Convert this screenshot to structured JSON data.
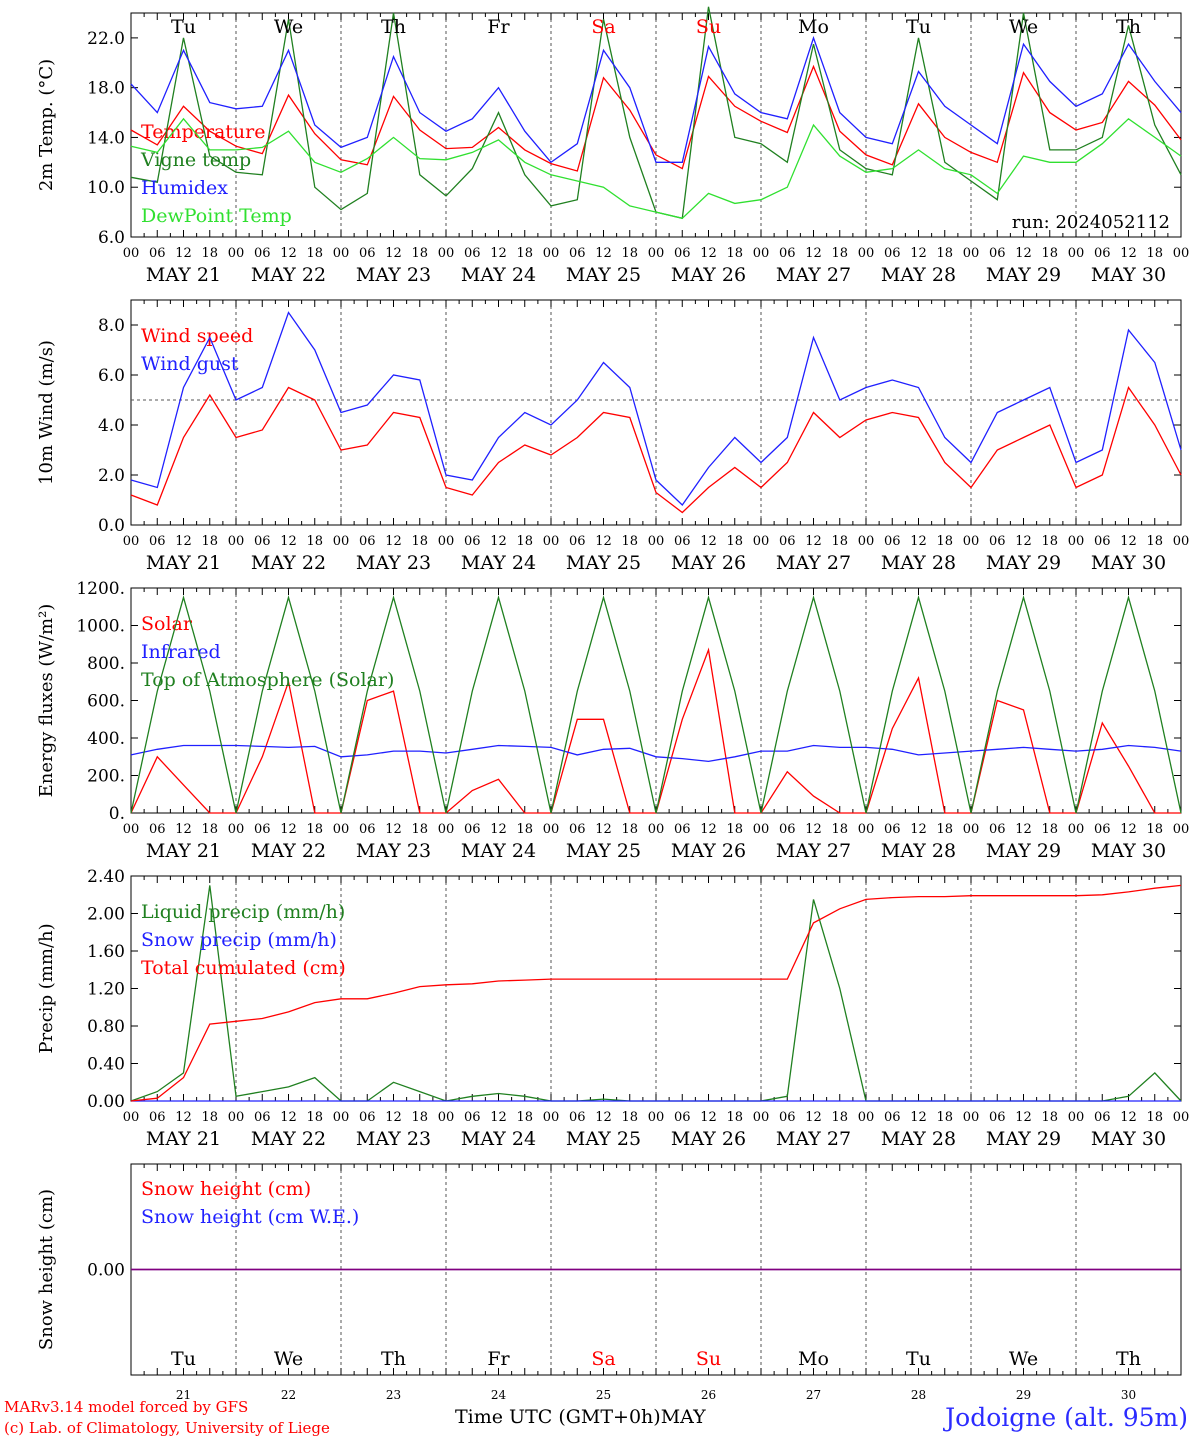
{
  "run_label": "run: 2024052112",
  "x_axis_title": "Time UTC (GMT+0h)MAY",
  "station": "Jodoigne (alt. 95m)",
  "credits": [
    "MARv3.14 model forced by GFS",
    "(c) Lab. of Climatology, University of Liege"
  ],
  "days": [
    {
      "date": "MAY 21",
      "weekday": "Tu",
      "num": "21",
      "weekend": false
    },
    {
      "date": "MAY 22",
      "weekday": "We",
      "num": "22",
      "weekend": false
    },
    {
      "date": "MAY 23",
      "weekday": "Th",
      "num": "23",
      "weekend": false
    },
    {
      "date": "MAY 24",
      "weekday": "Fr",
      "num": "24",
      "weekend": false
    },
    {
      "date": "MAY 25",
      "weekday": "Sa",
      "num": "25",
      "weekend": true
    },
    {
      "date": "MAY 26",
      "weekday": "Su",
      "num": "26",
      "weekend": true
    },
    {
      "date": "MAY 27",
      "weekday": "Mo",
      "num": "27",
      "weekend": false
    },
    {
      "date": "MAY 28",
      "weekday": "Tu",
      "num": "28",
      "weekend": false
    },
    {
      "date": "MAY 29",
      "weekday": "We",
      "num": "29",
      "weekend": false
    },
    {
      "date": "MAY 30",
      "weekday": "Th",
      "num": "30",
      "weekend": false
    }
  ],
  "hour_ticks": [
    "00",
    "06",
    "12",
    "18"
  ],
  "colors": {
    "red": "#ff0000",
    "green": "#208020",
    "blue": "#2020ff",
    "lightgreen": "#30e030",
    "purple": "#800080",
    "grid": "#555555"
  },
  "chart_data": [
    {
      "type": "line",
      "ylabel": "2m Temp. (°C)",
      "ylim": [
        6,
        24
      ],
      "yticks": [
        "6.0",
        "10.0",
        "14.0",
        "18.0",
        "22.0"
      ],
      "ytick_values": [
        6,
        10,
        14,
        18,
        22
      ],
      "x_hours_step": 6,
      "series": [
        {
          "name": "Temperature",
          "color": "#ff0000",
          "values": [
            14.6,
            13.4,
            16.5,
            14.5,
            13.3,
            12.7,
            17.4,
            14.3,
            12.2,
            11.8,
            17.3,
            14.6,
            13.1,
            13.2,
            14.8,
            13.0,
            11.9,
            11.3,
            18.8,
            16.2,
            12.6,
            11.5,
            18.9,
            16.5,
            15.3,
            14.4,
            19.7,
            14.5,
            12.6,
            11.8,
            16.7,
            14.0,
            12.8,
            12.0,
            19.2,
            16.0,
            14.6,
            15.2,
            18.5,
            16.6,
            13.8
          ]
        },
        {
          "name": "Vigne temp",
          "color": "#208020",
          "values": [
            10.8,
            10.4,
            22.0,
            12.5,
            11.2,
            11.0,
            23.5,
            10.0,
            8.2,
            9.5,
            24.0,
            11.0,
            9.3,
            11.5,
            16.0,
            11.0,
            8.5,
            9.0,
            23.5,
            14.0,
            8.0,
            7.5,
            24.5,
            14.0,
            13.5,
            12.0,
            21.5,
            13.0,
            11.5,
            11.0,
            22.0,
            12.0,
            10.5,
            9.0,
            24.0,
            13.0,
            13.0,
            14.0,
            23.0,
            15.0,
            11.0
          ]
        },
        {
          "name": "Humidex",
          "color": "#2020ff",
          "values": [
            18.3,
            16.0,
            21.0,
            16.8,
            16.3,
            16.5,
            21.0,
            15.0,
            13.2,
            14.0,
            20.5,
            16.0,
            14.5,
            15.5,
            18.0,
            14.5,
            12.0,
            13.5,
            21.0,
            18.0,
            12.0,
            12.0,
            21.3,
            17.5,
            16.0,
            15.5,
            22.0,
            16.0,
            14.0,
            13.5,
            19.3,
            16.5,
            15.0,
            13.5,
            21.5,
            18.5,
            16.5,
            17.5,
            21.5,
            18.5,
            16.0
          ]
        },
        {
          "name": "DewPoint Temp",
          "color": "#30e030",
          "values": [
            13.3,
            12.8,
            15.5,
            13.0,
            13.0,
            13.2,
            14.5,
            12.0,
            11.2,
            12.3,
            14.0,
            12.3,
            12.2,
            12.8,
            13.8,
            12.0,
            11.0,
            10.5,
            10.0,
            8.5,
            8.0,
            7.5,
            9.5,
            8.7,
            9.0,
            10.0,
            15.0,
            12.5,
            11.2,
            11.5,
            13.0,
            11.5,
            11.0,
            9.5,
            12.5,
            12.0,
            12.0,
            13.5,
            15.5,
            14.0,
            12.5
          ]
        }
      ]
    },
    {
      "type": "line",
      "ylabel": "10m Wind (m/s)",
      "ylim": [
        0,
        9
      ],
      "yticks": [
        "0.0",
        "2.0",
        "4.0",
        "6.0",
        "8.0"
      ],
      "ytick_values": [
        0,
        2,
        4,
        6,
        8
      ],
      "reference_line": 5,
      "x_hours_step": 6,
      "series": [
        {
          "name": "Wind speed",
          "color": "#ff0000",
          "values": [
            1.2,
            0.8,
            3.5,
            5.2,
            3.5,
            3.8,
            5.5,
            5.0,
            3.0,
            3.2,
            4.5,
            4.3,
            1.5,
            1.2,
            2.5,
            3.2,
            2.8,
            3.5,
            4.5,
            4.3,
            1.3,
            0.5,
            1.5,
            2.3,
            1.5,
            2.5,
            4.5,
            3.5,
            4.2,
            4.5,
            4.3,
            2.5,
            1.5,
            3.0,
            3.5,
            4.0,
            1.5,
            2.0,
            5.5,
            4.0,
            2.0
          ]
        },
        {
          "name": "Wind gust",
          "color": "#2020ff",
          "values": [
            1.8,
            1.5,
            5.5,
            7.5,
            5.0,
            5.5,
            8.5,
            7.0,
            4.5,
            4.8,
            6.0,
            5.8,
            2.0,
            1.8,
            3.5,
            4.5,
            4.0,
            5.0,
            6.5,
            5.5,
            1.8,
            0.8,
            2.3,
            3.5,
            2.5,
            3.5,
            7.5,
            5.0,
            5.5,
            5.8,
            5.5,
            3.5,
            2.5,
            4.5,
            5.0,
            5.5,
            2.5,
            3.0,
            7.8,
            6.5,
            3.0
          ]
        }
      ]
    },
    {
      "type": "line",
      "ylabel": "Energy fluxes (W/m²)",
      "ylim": [
        0,
        1200
      ],
      "yticks": [
        "0.",
        "200.",
        "400.",
        "600.",
        "800.",
        "1000.",
        "1200."
      ],
      "ytick_values": [
        0,
        200,
        400,
        600,
        800,
        1000,
        1200
      ],
      "x_hours_step": 6,
      "series": [
        {
          "name": "Solar",
          "color": "#ff0000",
          "values": [
            0,
            300,
            150,
            0,
            0,
            300,
            700,
            0,
            0,
            600,
            650,
            0,
            0,
            120,
            180,
            0,
            0,
            500,
            500,
            0,
            0,
            500,
            870,
            0,
            0,
            220,
            90,
            0,
            0,
            450,
            720,
            0,
            0,
            600,
            550,
            0,
            0,
            480,
            250,
            0,
            0
          ]
        },
        {
          "name": "Infrared",
          "color": "#2020ff",
          "values": [
            310,
            340,
            360,
            360,
            360,
            355,
            350,
            355,
            300,
            310,
            330,
            330,
            320,
            340,
            360,
            355,
            350,
            310,
            340,
            345,
            300,
            290,
            275,
            300,
            330,
            330,
            360,
            350,
            350,
            340,
            310,
            320,
            330,
            340,
            350,
            340,
            330,
            340,
            360,
            350,
            330
          ]
        },
        {
          "name": "Top of Atmosphere (Solar)",
          "color": "#208020",
          "values": [
            0,
            650,
            1150,
            650,
            0,
            650,
            1150,
            650,
            0,
            650,
            1150,
            650,
            0,
            650,
            1150,
            650,
            0,
            650,
            1150,
            650,
            0,
            650,
            1150,
            650,
            0,
            650,
            1150,
            650,
            0,
            650,
            1150,
            650,
            0,
            650,
            1150,
            650,
            0,
            650,
            1150,
            650,
            0
          ]
        }
      ]
    },
    {
      "type": "line",
      "ylabel": "Precip (mm/h)",
      "ylim": [
        0,
        2.4
      ],
      "yticks": [
        "0.00",
        "0.40",
        "0.80",
        "1.20",
        "1.60",
        "2.00",
        "2.40"
      ],
      "ytick_values": [
        0,
        0.4,
        0.8,
        1.2,
        1.6,
        2.0,
        2.4
      ],
      "x_hours_step": 6,
      "series": [
        {
          "name": "Liquid precip (mm/h)",
          "color": "#208020",
          "values": [
            0,
            0.1,
            0.3,
            2.3,
            0.05,
            0.1,
            0.15,
            0.25,
            0.0,
            0.0,
            0.2,
            0.1,
            0.0,
            0.05,
            0.08,
            0.05,
            0.0,
            0.0,
            0.02,
            0.0,
            0.0,
            0.0,
            0.0,
            0.0,
            0.0,
            0.05,
            2.15,
            1.2,
            0.0,
            0.0,
            0.0,
            0.0,
            0.0,
            0.0,
            0.0,
            0.0,
            0.0,
            0.0,
            0.05,
            0.3,
            0.0
          ]
        },
        {
          "name": "Snow precip (mm/h)",
          "color": "#2020ff",
          "values": [
            0,
            0,
            0,
            0,
            0,
            0,
            0,
            0,
            0,
            0,
            0,
            0,
            0,
            0,
            0,
            0,
            0,
            0,
            0,
            0,
            0,
            0,
            0,
            0,
            0,
            0,
            0,
            0,
            0,
            0,
            0,
            0,
            0,
            0,
            0,
            0,
            0,
            0,
            0,
            0,
            0
          ]
        },
        {
          "name": "Total cumulated (cm)",
          "color": "#ff0000",
          "values": [
            0.0,
            0.03,
            0.25,
            0.82,
            0.85,
            0.88,
            0.95,
            1.05,
            1.09,
            1.09,
            1.15,
            1.22,
            1.24,
            1.25,
            1.28,
            1.29,
            1.3,
            1.3,
            1.3,
            1.3,
            1.3,
            1.3,
            1.3,
            1.3,
            1.3,
            1.3,
            1.9,
            2.05,
            2.15,
            2.17,
            2.18,
            2.18,
            2.19,
            2.19,
            2.19,
            2.19,
            2.19,
            2.2,
            2.23,
            2.27,
            2.3
          ]
        }
      ]
    },
    {
      "type": "line",
      "ylabel": "Snow height (cm)",
      "ylim": [
        -0.5,
        0.5
      ],
      "yticks": [
        "0.00"
      ],
      "ytick_values": [
        0
      ],
      "x_hours_step": 6,
      "series": [
        {
          "name": "Snow height (cm)",
          "color": "#ff0000",
          "values": [
            0,
            0,
            0,
            0,
            0,
            0,
            0,
            0,
            0,
            0,
            0,
            0,
            0,
            0,
            0,
            0,
            0,
            0,
            0,
            0,
            0,
            0,
            0,
            0,
            0,
            0,
            0,
            0,
            0,
            0,
            0,
            0,
            0,
            0,
            0,
            0,
            0,
            0,
            0,
            0,
            0
          ]
        },
        {
          "name": "Snow height (cm W.E.)",
          "color": "#2020ff",
          "values": [
            0,
            0,
            0,
            0,
            0,
            0,
            0,
            0,
            0,
            0,
            0,
            0,
            0,
            0,
            0,
            0,
            0,
            0,
            0,
            0,
            0,
            0,
            0,
            0,
            0,
            0,
            0,
            0,
            0,
            0,
            0,
            0,
            0,
            0,
            0,
            0,
            0,
            0,
            0,
            0,
            0
          ]
        }
      ]
    }
  ]
}
